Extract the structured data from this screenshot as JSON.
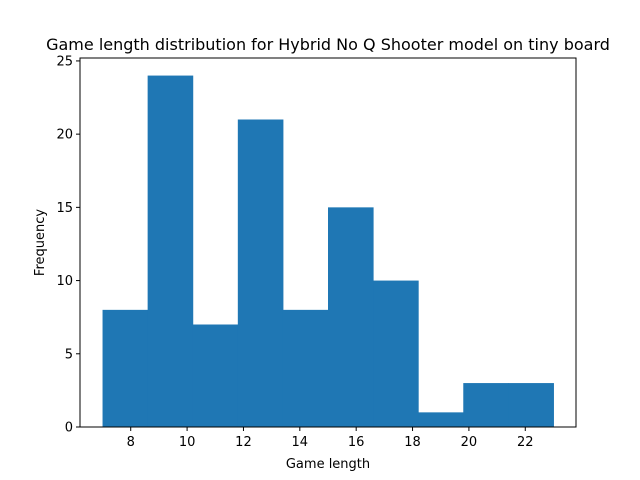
{
  "chart_data": {
    "type": "bar",
    "histogram": true,
    "title": "Game length distribution for Hybrid No Q Shooter model on tiny board",
    "xlabel": "Game length",
    "ylabel": "Frequency",
    "bin_edges": [
      7,
      8.6,
      10.2,
      11.8,
      13.4,
      15,
      16.6,
      18.2,
      19.8,
      21.4,
      23
    ],
    "values": [
      8,
      24,
      7,
      21,
      8,
      15,
      10,
      1,
      3,
      3
    ],
    "xlim": [
      6.2,
      23.8
    ],
    "ylim": [
      0,
      25.2
    ],
    "xticks": [
      8,
      10,
      12,
      14,
      16,
      18,
      20,
      22
    ],
    "yticks": [
      0,
      5,
      10,
      15,
      20,
      25
    ],
    "grid": false,
    "legend": "none",
    "bar_color": "#1f77b4"
  }
}
